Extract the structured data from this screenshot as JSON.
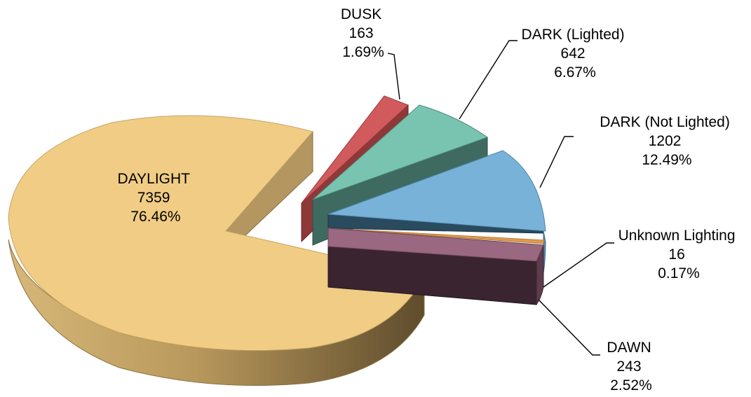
{
  "chart_data": {
    "type": "pie",
    "style": "3d-exploded",
    "title": "",
    "legend": "none",
    "slices": [
      {
        "label": "DAYLIGHT",
        "value": 7359,
        "percent": 76.46,
        "count_text": "7359",
        "percent_text": "76.46%",
        "color": "#F0CC85"
      },
      {
        "label": "DUSK",
        "value": 163,
        "percent": 1.69,
        "count_text": "163",
        "percent_text": "1.69%",
        "color": "#D05A5C"
      },
      {
        "label": "DARK (Lighted)",
        "value": 642,
        "percent": 6.67,
        "count_text": "642",
        "percent_text": "6.67%",
        "color": "#78C4B0"
      },
      {
        "label": "DARK (Not Lighted)",
        "value": 1202,
        "percent": 12.49,
        "count_text": "1202",
        "percent_text": "12.49%",
        "color": "#78B2D8"
      },
      {
        "label": "Unknown Lighting",
        "value": 16,
        "percent": 0.17,
        "count_text": "16",
        "percent_text": "0.17%",
        "color": "#E09A4C"
      },
      {
        "label": "DAWN",
        "value": 243,
        "percent": 2.52,
        "count_text": "243",
        "percent_text": "2.52%",
        "color": "#9A6880"
      }
    ]
  }
}
